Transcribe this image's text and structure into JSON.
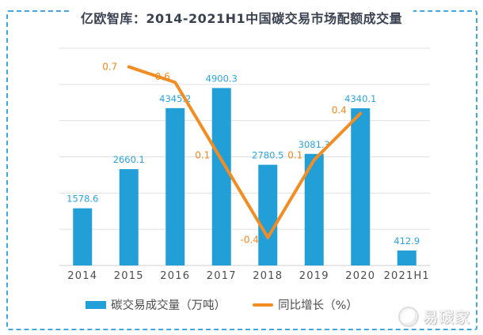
{
  "chart_data": {
    "type": "bar",
    "title": "亿欧智库：2014-2021H1中国碳交易市场配额成交量",
    "categories": [
      "2014",
      "2015",
      "2016",
      "2017",
      "2018",
      "2019",
      "2020",
      "2021H1"
    ],
    "series": [
      {
        "name": "碳交易成交量（万吨）",
        "kind": "bar",
        "axis": "primary",
        "values": [
          1578.6,
          2660.1,
          4345.2,
          4900.3,
          2780.5,
          3081.3,
          4340.1,
          412.9
        ]
      },
      {
        "name": "同比增长（%）",
        "kind": "line",
        "axis": "secondary",
        "values": [
          null,
          0.7,
          0.6,
          0.1,
          -0.4,
          0.1,
          0.4,
          null
        ]
      }
    ],
    "xlabel": "",
    "ylabel": "",
    "ylim": [
      0,
      6000
    ],
    "grid_step": 1000,
    "y2lim": [
      -0.58,
      0.82
    ],
    "grid": true,
    "data_labels": true,
    "legend_position": "bottom"
  },
  "legend": {
    "bar_label": "碳交易成交量（万吨）",
    "line_label": "同比增长（%）"
  },
  "watermark": {
    "text": "易碳家"
  },
  "colors": {
    "bar": "#219FD6",
    "bar_label": "#2AA4DF",
    "line": "#F28D24",
    "line_label": "#F0891D",
    "border": "#41A7DE",
    "title_text": "#3A4150",
    "axis_text": "#4C4C4C",
    "grid": "#E1E1E1",
    "baseline": "#CFCFCF"
  }
}
